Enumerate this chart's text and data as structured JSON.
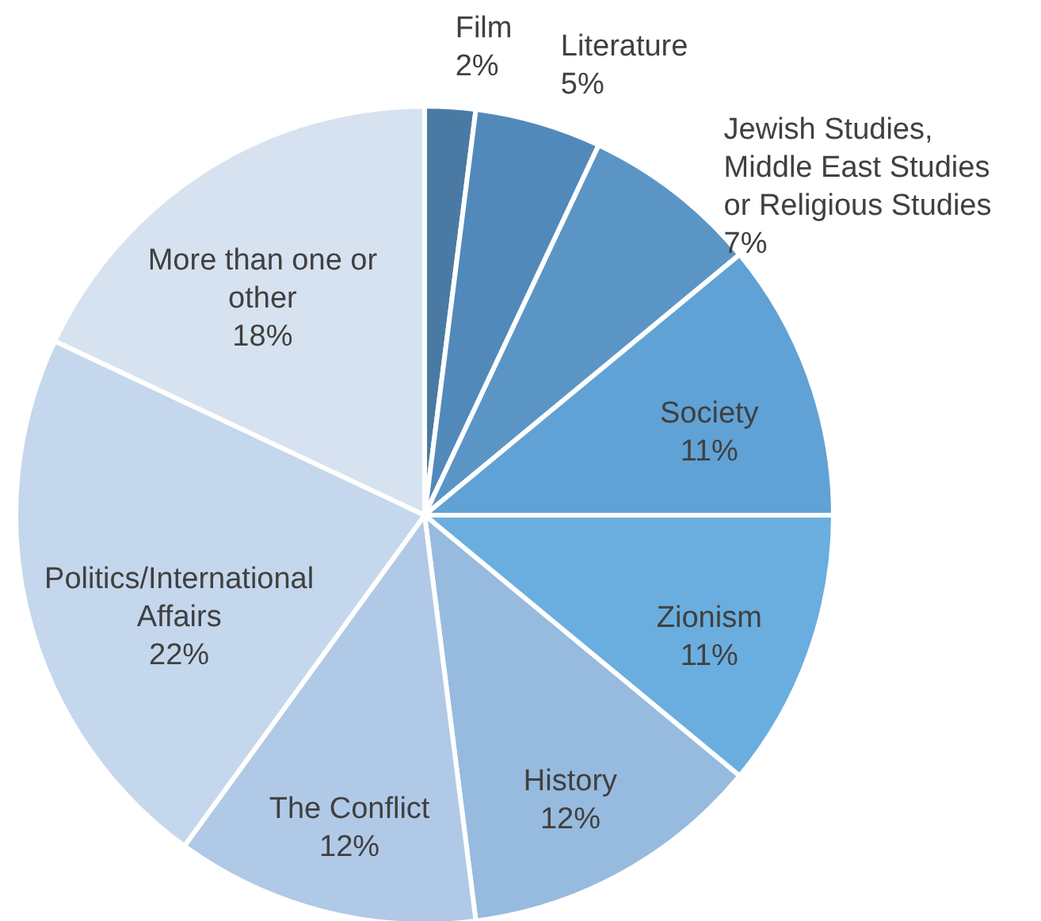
{
  "chart_data": {
    "type": "pie",
    "categories": [
      "Film",
      "Literature",
      "Jewish Studies, Middle East Studies or Religious Studies",
      "Society",
      "Zionism",
      "History",
      "The Conflict",
      "Politics/International Affairs",
      "More than one or other"
    ],
    "values": [
      2,
      5,
      7,
      11,
      11,
      12,
      12,
      22,
      18
    ],
    "value_labels": [
      "2%",
      "5%",
      "7%",
      "11%",
      "11%",
      "12%",
      "12%",
      "22%",
      "18%"
    ],
    "colors": [
      "#4a7aa3",
      "#5289bb",
      "#5b95c6",
      "#60a2d5",
      "#6aaedf",
      "#97badf",
      "#b0c9e7",
      "#c4d7ec",
      "#d7e2f1"
    ]
  }
}
